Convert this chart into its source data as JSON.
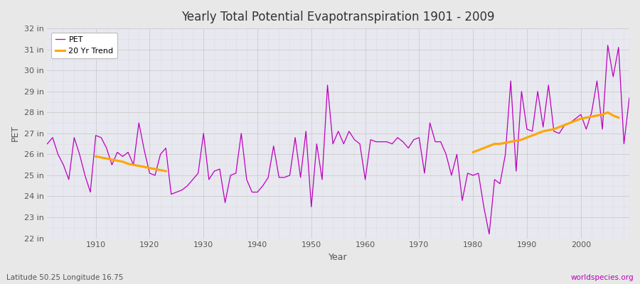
{
  "title": "Yearly Total Potential Evapotranspiration 1901 - 2009",
  "xlabel": "Year",
  "ylabel": "PET",
  "subtitle_left": "Latitude 50.25 Longitude 16.75",
  "subtitle_right": "worldspecies.org",
  "pet_color": "#BB00BB",
  "trend_color": "#FFA500",
  "fig_bg_color": "#E8E8E8",
  "plot_bg_color": "#E8E8F0",
  "grid_major_color": "#CCCCCC",
  "grid_minor_color": "#DDDDDD",
  "ylim": [
    22,
    32
  ],
  "yticks": [
    22,
    23,
    24,
    25,
    26,
    27,
    28,
    29,
    30,
    31,
    32
  ],
  "xlim": [
    1901,
    2009
  ],
  "xticks": [
    1910,
    1920,
    1930,
    1940,
    1950,
    1960,
    1970,
    1980,
    1990,
    2000
  ],
  "years": [
    1901,
    1902,
    1903,
    1904,
    1905,
    1906,
    1907,
    1908,
    1909,
    1910,
    1911,
    1912,
    1913,
    1914,
    1915,
    1916,
    1917,
    1918,
    1919,
    1920,
    1921,
    1922,
    1923,
    1924,
    1925,
    1926,
    1927,
    1928,
    1929,
    1930,
    1931,
    1932,
    1933,
    1934,
    1935,
    1936,
    1937,
    1938,
    1939,
    1940,
    1941,
    1942,
    1943,
    1944,
    1945,
    1946,
    1947,
    1948,
    1949,
    1950,
    1951,
    1952,
    1953,
    1954,
    1955,
    1956,
    1957,
    1958,
    1959,
    1960,
    1961,
    1962,
    1963,
    1964,
    1965,
    1966,
    1967,
    1968,
    1969,
    1970,
    1971,
    1972,
    1973,
    1974,
    1975,
    1976,
    1977,
    1978,
    1979,
    1980,
    1981,
    1982,
    1983,
    1984,
    1985,
    1986,
    1987,
    1988,
    1989,
    1990,
    1991,
    1992,
    1993,
    1994,
    1995,
    1996,
    1997,
    1998,
    1999,
    2000,
    2001,
    2002,
    2003,
    2004,
    2005,
    2006,
    2007,
    2008,
    2009
  ],
  "pet_values": [
    26.5,
    26.8,
    26.0,
    25.5,
    24.8,
    26.8,
    26.0,
    25.0,
    24.2,
    26.9,
    26.8,
    26.3,
    25.5,
    26.1,
    25.9,
    26.1,
    25.5,
    27.5,
    26.2,
    25.1,
    25.0,
    26.0,
    26.3,
    24.1,
    24.2,
    24.3,
    24.5,
    24.8,
    25.1,
    27.0,
    24.8,
    25.2,
    25.3,
    23.7,
    25.0,
    25.1,
    27.0,
    24.8,
    24.2,
    24.2,
    24.5,
    24.9,
    26.4,
    24.9,
    24.9,
    25.0,
    26.8,
    24.9,
    27.1,
    23.5,
    26.5,
    24.8,
    29.3,
    26.5,
    27.1,
    26.5,
    27.1,
    26.7,
    26.5,
    24.8,
    26.7,
    26.6,
    26.6,
    26.6,
    26.5,
    26.8,
    26.6,
    26.3,
    26.7,
    26.8,
    25.1,
    27.5,
    26.6,
    26.6,
    26.0,
    25.0,
    26.0,
    23.8,
    25.1,
    25.0,
    25.1,
    23.5,
    22.2,
    24.8,
    24.6,
    26.0,
    29.5,
    25.2,
    29.0,
    27.2,
    27.1,
    29.0,
    27.3,
    29.3,
    27.1,
    27.0,
    27.4,
    27.5,
    27.7,
    27.9,
    27.2,
    28.0,
    29.5,
    27.2,
    31.2,
    29.7,
    31.1,
    26.5,
    28.7
  ],
  "trend_seg1_years": [
    1910,
    1911,
    1912,
    1913,
    1914,
    1915,
    1916,
    1917,
    1918,
    1919,
    1920,
    1921,
    1922,
    1923
  ],
  "trend_seg1_vals": [
    25.9,
    25.85,
    25.8,
    25.75,
    25.7,
    25.65,
    25.55,
    25.5,
    25.45,
    25.4,
    25.35,
    25.3,
    25.25,
    25.2
  ],
  "trend_seg2_years": [
    1980,
    1981,
    1982,
    1983,
    1984,
    1985,
    1986,
    1987,
    1988,
    1989,
    1990,
    1991,
    1992,
    1993,
    1994,
    1995,
    1996,
    1997,
    1998,
    1999,
    2000,
    2001,
    2002,
    2003,
    2004,
    2005,
    2006,
    2007
  ],
  "trend_seg2_vals": [
    26.1,
    26.2,
    26.3,
    26.4,
    26.5,
    26.5,
    26.55,
    26.6,
    26.65,
    26.7,
    26.8,
    26.9,
    27.0,
    27.1,
    27.15,
    27.2,
    27.3,
    27.4,
    27.5,
    27.6,
    27.7,
    27.75,
    27.8,
    27.85,
    27.9,
    28.0,
    27.85,
    27.75
  ]
}
